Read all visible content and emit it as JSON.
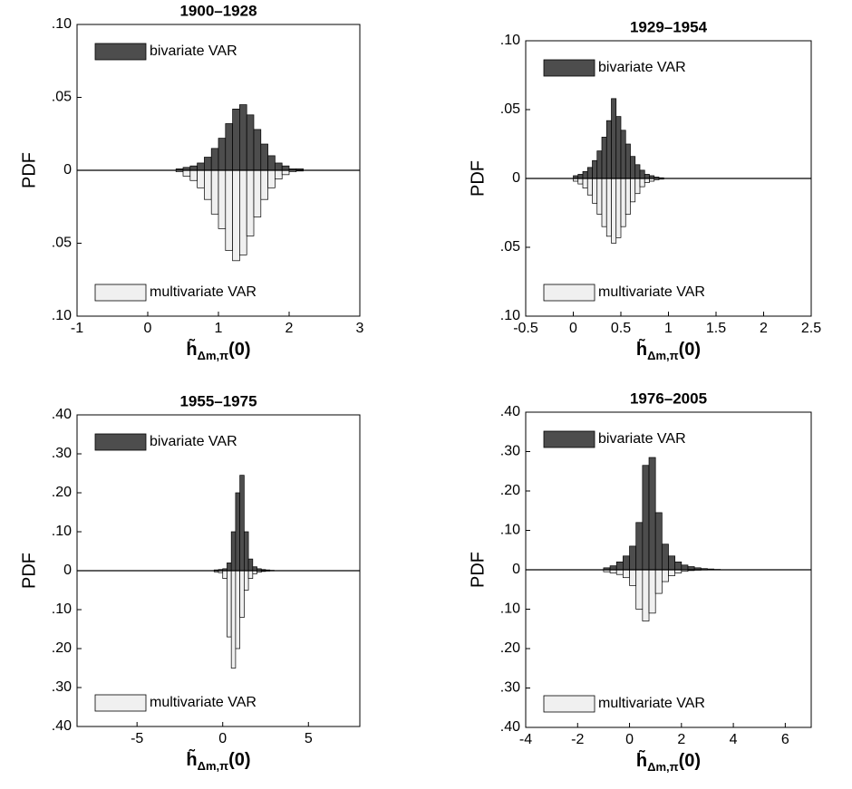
{
  "chart_data": [
    {
      "type": "mirrored-histogram",
      "title": "1900–1928",
      "ylabel": "PDF",
      "xlabel": {
        "base": "h̃",
        "sub": "Δm,π",
        "arg": "(0)"
      },
      "xlim": [
        -1,
        3
      ],
      "xticks": [
        -1,
        0,
        1,
        2,
        3
      ],
      "ylim": [
        -0.1,
        0.1
      ],
      "yticks": [
        {
          "value": -0.1,
          "label": ".10"
        },
        {
          "value": -0.05,
          "label": ".05"
        },
        0,
        {
          "value": 0.05,
          "label": ".05"
        },
        {
          "value": 0.1,
          "label": ".10"
        }
      ],
      "bins": [
        0.4,
        0.5,
        0.6,
        0.7,
        0.8,
        0.9,
        1.0,
        1.1,
        1.2,
        1.3,
        1.4,
        1.5,
        1.6,
        1.7,
        1.8,
        1.9,
        2.0,
        2.1,
        2.2
      ],
      "series": [
        {
          "name": "bivariate VAR",
          "color": "#4d4d4d",
          "values": [
            0.001,
            0.002,
            0.003,
            0.005,
            0.009,
            0.015,
            0.022,
            0.032,
            0.042,
            0.045,
            0.038,
            0.028,
            0.018,
            0.01,
            0.005,
            0.003,
            0.001,
            0.001
          ]
        },
        {
          "name": "multivariate VAR",
          "color": "#f0f0f0",
          "values": [
            -0.001,
            -0.004,
            -0.007,
            -0.012,
            -0.02,
            -0.03,
            -0.04,
            -0.055,
            -0.062,
            -0.058,
            -0.045,
            -0.032,
            -0.02,
            -0.012,
            -0.006,
            -0.003,
            -0.001,
            -0.0005
          ]
        }
      ]
    },
    {
      "type": "mirrored-histogram",
      "title": "1929–1954",
      "ylabel": "PDF",
      "xlabel": {
        "base": "h̃",
        "sub": "Δm,π",
        "arg": "(0)"
      },
      "xlim": [
        -0.5,
        2.5
      ],
      "xticks": [
        -0.5,
        0,
        0.5,
        1,
        1.5,
        2,
        2.5
      ],
      "ylim": [
        -0.1,
        0.1
      ],
      "yticks": [
        {
          "value": -0.1,
          "label": ".10"
        },
        {
          "value": -0.05,
          "label": ".05"
        },
        0,
        {
          "value": 0.05,
          "label": ".05"
        },
        {
          "value": 0.1,
          "label": ".10"
        }
      ],
      "bins": [
        0.0,
        0.05,
        0.1,
        0.15,
        0.2,
        0.25,
        0.3,
        0.35,
        0.4,
        0.45,
        0.5,
        0.55,
        0.6,
        0.65,
        0.7,
        0.75,
        0.8,
        0.85,
        0.9,
        0.95
      ],
      "series": [
        {
          "name": "bivariate VAR",
          "color": "#4d4d4d",
          "values": [
            0.002,
            0.003,
            0.005,
            0.008,
            0.013,
            0.02,
            0.03,
            0.042,
            0.058,
            0.045,
            0.035,
            0.025,
            0.016,
            0.01,
            0.006,
            0.003,
            0.002,
            0.001,
            0.0005
          ]
        },
        {
          "name": "multivariate VAR",
          "color": "#f0f0f0",
          "values": [
            -0.002,
            -0.004,
            -0.007,
            -0.012,
            -0.018,
            -0.026,
            -0.035,
            -0.042,
            -0.047,
            -0.043,
            -0.035,
            -0.026,
            -0.017,
            -0.011,
            -0.006,
            -0.003,
            -0.002,
            -0.001,
            -0.0005
          ]
        }
      ]
    },
    {
      "type": "mirrored-histogram",
      "title": "1955–1975",
      "ylabel": "PDF",
      "xlabel": {
        "base": "h̃",
        "sub": "Δm,π",
        "arg": "(0)"
      },
      "xlim": [
        -8.5,
        8
      ],
      "xticks": [
        -5,
        0,
        5
      ],
      "ylim": [
        -0.4,
        0.4
      ],
      "yticks": [
        {
          "value": -0.4,
          "label": ".40"
        },
        {
          "value": -0.3,
          "label": ".30"
        },
        {
          "value": -0.2,
          "label": ".20"
        },
        {
          "value": -0.1,
          "label": ".10"
        },
        0,
        {
          "value": 0.1,
          "label": ".10"
        },
        {
          "value": 0.2,
          "label": ".20"
        },
        {
          "value": 0.3,
          "label": ".30"
        },
        {
          "value": 0.4,
          "label": ".40"
        }
      ],
      "bins": [
        -0.5,
        -0.25,
        0,
        0.25,
        0.5,
        0.75,
        1.0,
        1.25,
        1.5,
        1.75,
        2.0,
        2.25,
        2.5,
        2.75,
        3.0
      ],
      "series": [
        {
          "name": "bivariate VAR",
          "color": "#4d4d4d",
          "values": [
            0.002,
            0.003,
            0.005,
            0.02,
            0.1,
            0.2,
            0.245,
            0.1,
            0.03,
            0.01,
            0.005,
            0.003,
            0.002,
            0.001
          ]
        },
        {
          "name": "multivariate VAR",
          "color": "#f0f0f0",
          "values": [
            -0.003,
            -0.005,
            -0.02,
            -0.17,
            -0.25,
            -0.2,
            -0.12,
            -0.05,
            -0.02,
            -0.008,
            -0.004,
            -0.002,
            -0.001,
            -0.0005
          ]
        }
      ]
    },
    {
      "type": "mirrored-histogram",
      "title": "1976–2005",
      "ylabel": "PDF",
      "xlabel": {
        "base": "h̃",
        "sub": "Δm,π",
        "arg": "(0)"
      },
      "xlim": [
        -4,
        7
      ],
      "xticks": [
        -4,
        -2,
        0,
        2,
        4,
        6
      ],
      "ylim": [
        -0.4,
        0.4
      ],
      "yticks": [
        {
          "value": -0.4,
          "label": ".40"
        },
        {
          "value": -0.3,
          "label": ".30"
        },
        {
          "value": -0.2,
          "label": ".20"
        },
        {
          "value": -0.1,
          "label": ".10"
        },
        0,
        {
          "value": 0.1,
          "label": ".10"
        },
        {
          "value": 0.2,
          "label": ".20"
        },
        {
          "value": 0.3,
          "label": ".30"
        },
        {
          "value": 0.4,
          "label": ".40"
        }
      ],
      "bins": [
        -1.0,
        -0.75,
        -0.5,
        -0.25,
        0,
        0.25,
        0.5,
        0.75,
        1.0,
        1.25,
        1.5,
        1.75,
        2.0,
        2.25,
        2.5,
        2.75,
        3.0,
        3.25,
        3.5
      ],
      "series": [
        {
          "name": "bivariate VAR",
          "color": "#4d4d4d",
          "values": [
            0.005,
            0.01,
            0.02,
            0.035,
            0.06,
            0.12,
            0.265,
            0.285,
            0.145,
            0.065,
            0.035,
            0.02,
            0.012,
            0.008,
            0.005,
            0.003,
            0.002,
            0.001
          ]
        },
        {
          "name": "multivariate VAR",
          "color": "#f0f0f0",
          "values": [
            -0.005,
            -0.008,
            -0.012,
            -0.02,
            -0.04,
            -0.1,
            -0.13,
            -0.11,
            -0.06,
            -0.03,
            -0.015,
            -0.008,
            -0.004,
            -0.002,
            -0.001,
            -0.0005,
            -0.0003,
            -0.0002
          ]
        }
      ]
    }
  ]
}
